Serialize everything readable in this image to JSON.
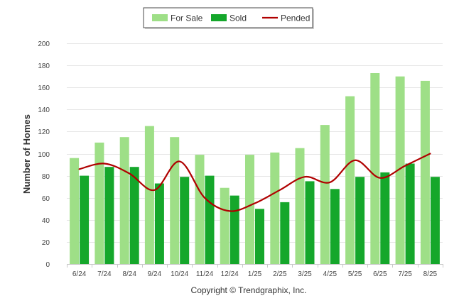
{
  "chart_data": {
    "type": "bar",
    "categories": [
      "6/24",
      "7/24",
      "8/24",
      "9/24",
      "10/24",
      "11/24",
      "12/24",
      "1/25",
      "2/25",
      "3/25",
      "4/25",
      "5/25",
      "6/25",
      "7/25",
      "8/25"
    ],
    "series": [
      {
        "name": "For Sale",
        "kind": "bar",
        "color": "#9edf87",
        "values": [
          96,
          110,
          115,
          125,
          115,
          99,
          69,
          99,
          101,
          105,
          126,
          152,
          173,
          170,
          166
        ]
      },
      {
        "name": "Sold",
        "kind": "bar",
        "color": "#15a72b",
        "values": [
          80,
          88,
          88,
          73,
          79,
          80,
          62,
          50,
          56,
          75,
          68,
          79,
          83,
          91,
          79
        ]
      },
      {
        "name": "Pended",
        "kind": "line",
        "color": "#b00000",
        "values": [
          86,
          91,
          82,
          67,
          93,
          60,
          48,
          55,
          67,
          79,
          74,
          94,
          78,
          89,
          100
        ]
      }
    ],
    "title": "",
    "xlabel": "",
    "ylabel": "Number of Homes",
    "ylim": [
      0,
      200
    ],
    "yticks": [
      0,
      20,
      40,
      60,
      80,
      100,
      120,
      140,
      160,
      180,
      200
    ],
    "grid": true,
    "legend_position": "top-center"
  },
  "footer": {
    "copyright": "Copyright © Trendgraphix, Inc."
  }
}
